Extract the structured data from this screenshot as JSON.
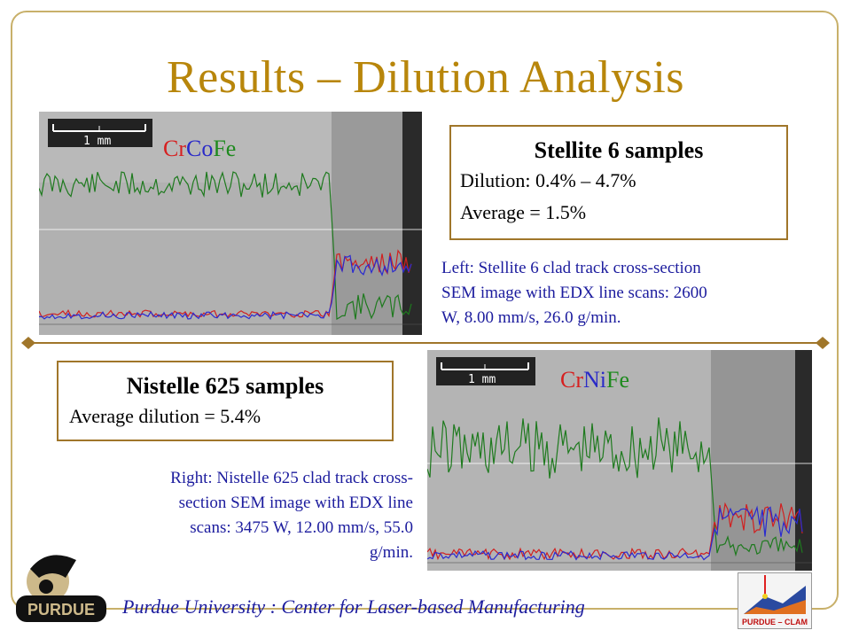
{
  "slide": {
    "title": "Results – Dilution Analysis",
    "left_image": {
      "scale_label": "1 mm",
      "element_labels": [
        {
          "text": "Cr",
          "color": "#d62020"
        },
        {
          "text": "Co",
          "color": "#2a2ac8"
        },
        {
          "text": "Fe",
          "color": "#1e8a1e"
        }
      ]
    },
    "right_image": {
      "scale_label": "1 mm",
      "element_labels": [
        {
          "text": "Cr",
          "color": "#d62020"
        },
        {
          "text": "Ni",
          "color": "#2a2ac8"
        },
        {
          "text": "Fe",
          "color": "#1e8a1e"
        }
      ]
    },
    "stellite_box": {
      "heading": "Stellite 6 samples",
      "line1": "Dilution: 0.4% – 4.7%",
      "line2": "Average = 1.5%"
    },
    "left_caption": {
      "line1": "Left: Stellite 6 clad track cross-section",
      "line2": "SEM image with EDX line scans: 2600",
      "line3": "W, 8.00 mm/s, 26.0 g/min."
    },
    "nistelle_box": {
      "heading": "Nistelle 625 samples",
      "line1": "Average dilution = 5.4%"
    },
    "right_caption": {
      "line1": "Right: Nistelle 625 clad track cross-",
      "line2": "section SEM image with EDX line",
      "line3": "scans: 3475 W, 12.00 mm/s, 55.0",
      "line4": "g/min."
    },
    "footer": "Purdue University :  Center for Laser-based Manufacturing",
    "left_logo_text": "PURDUE",
    "right_logo_text": "PURDUE – CLAM",
    "colors": {
      "title": "#b8860b",
      "caption": "#1c1c9e",
      "frame": "#c8b06a",
      "box_border": "#a0762a"
    }
  }
}
